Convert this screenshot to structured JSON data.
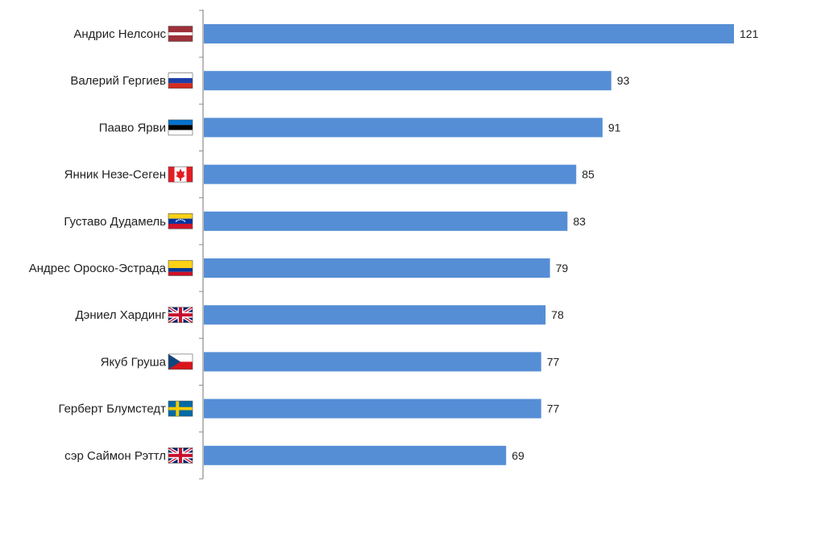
{
  "chart_data": {
    "type": "bar",
    "orientation": "horizontal",
    "categories": [
      "Андрис Нелсонс",
      "Валерий Гергиев",
      "Пааво Ярви",
      "Янник Незе-Сеген",
      "Густаво Дудамель",
      "Андрес Ороско-Эстрада",
      "Дэниел Хардинг",
      "Якуб Груша",
      "Герберт Блумстедт",
      "сэр Саймон Рэттл"
    ],
    "values": [
      121,
      93,
      91,
      85,
      83,
      79,
      78,
      77,
      77,
      69
    ],
    "flags": [
      "latvia-flag-icon",
      "russia-flag-icon",
      "estonia-flag-icon",
      "canada-flag-icon",
      "venezuela-flag-icon",
      "colombia-flag-icon",
      "uk-flag-icon",
      "czech-flag-icon",
      "sweden-flag-icon",
      "uk-flag-icon"
    ],
    "bar_color": "#558ed5",
    "xlim": [
      0,
      121
    ],
    "title": "",
    "xlabel": "",
    "ylabel": "",
    "grid": false,
    "legend": "none"
  }
}
